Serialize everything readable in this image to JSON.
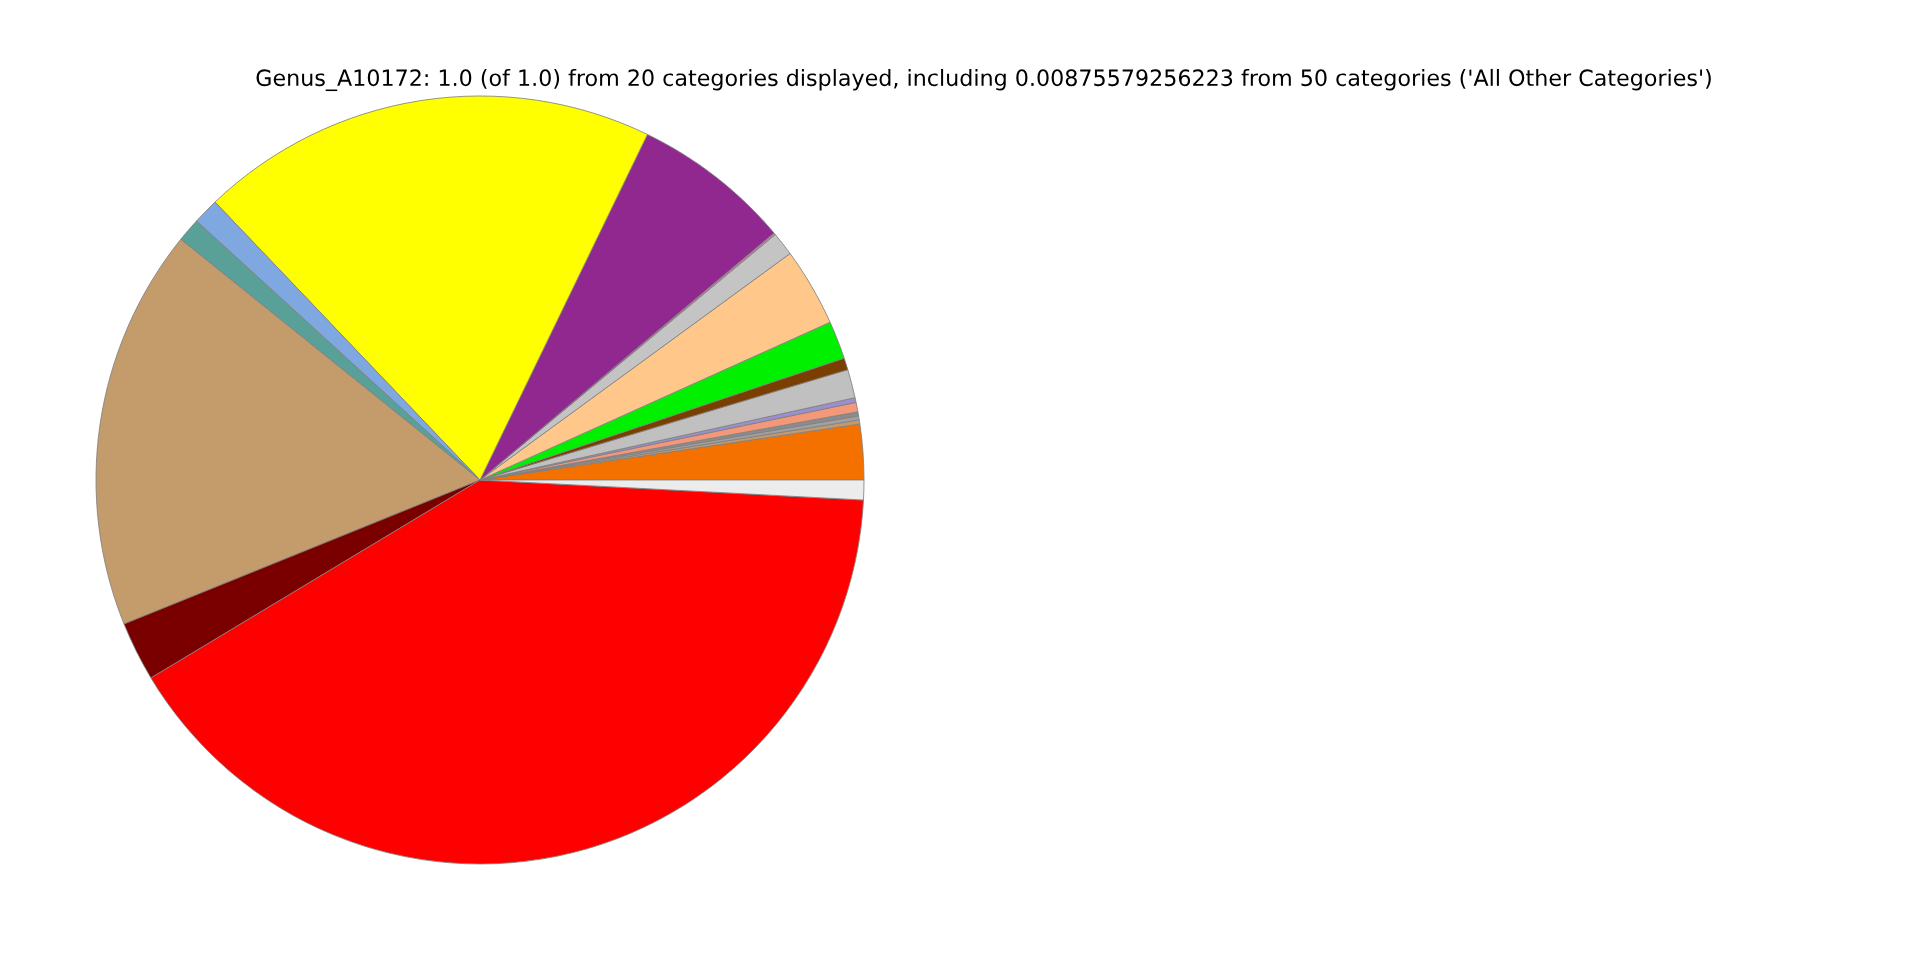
{
  "chart_data": {
    "type": "pie",
    "title": "Genus_A10172: 1.0 (of 1.0) from 20 categories displayed, including 0.00875579256223 from 50 categories ('All Other Categories')",
    "categories": [
      null,
      null,
      null,
      null,
      null,
      null,
      null,
      null,
      null,
      null,
      null,
      null,
      null,
      null,
      null,
      null,
      null,
      null,
      null,
      null
    ],
    "values": [
      2.33,
      0.17,
      0.17,
      0.17,
      0.4,
      0.2,
      1.2,
      0.5,
      1.6,
      3.3,
      1.0,
      0.08,
      6.7,
      19.3,
      1.1,
      1.0,
      16.9,
      2.5,
      40.55,
      0.83
    ],
    "colors": [
      "#f47100",
      "#c49a6c",
      "#a0a0a0",
      "#8c8c8c",
      "#f4987a",
      "#9b8fd0",
      "#c0c0c0",
      "#7a3f00",
      "#00f000",
      "#ffc88a",
      "#c4c4c4",
      "#c080a0",
      "#902890",
      "#ffff00",
      "#80a8e0",
      "#58a098",
      "#c49c6c",
      "#7a0000",
      "#ff0000",
      "#ececec"
    ]
  }
}
